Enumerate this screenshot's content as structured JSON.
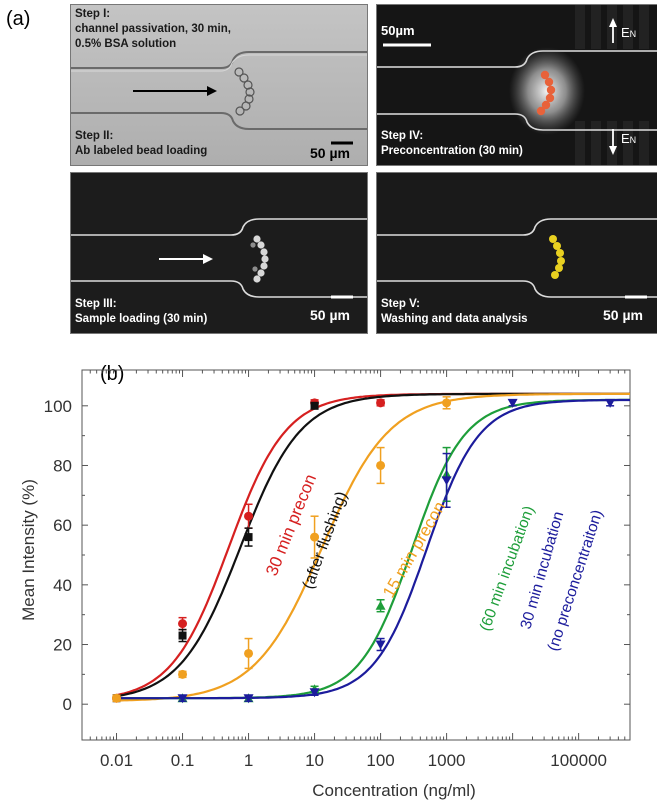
{
  "panel_a": {
    "label": "(a)",
    "steps": [
      {
        "line1": "Step I:",
        "line2": "channel passivation, 30 min,",
        "line3": "0.5% BSA solution"
      },
      {
        "line1": "Step II:",
        "line2": "Ab labeled bead loading"
      },
      {
        "line1": "Step III:",
        "line2": "Sample loading (30 min)"
      },
      {
        "line1": "Step IV:",
        "line2": "Preconcentration (30 min)"
      },
      {
        "line1": "Step V:",
        "line2": "Washing and data analysis"
      }
    ],
    "scale_bar": "50 µm",
    "scale_bar_top": "50µm",
    "field_label": "E",
    "field_sub": "N",
    "colors": {
      "bright_field": "#b8b8b8",
      "dark_field": "#1a1a1a",
      "orange_beads": "#e8623a",
      "yellow_beads": "#e8d020",
      "white_beads": "#d8d8d8"
    }
  },
  "chart_data": {
    "type": "line",
    "label": "(b)",
    "xlabel": "Concentration (ng/ml)",
    "ylabel": "Mean Intensity (%)",
    "xscale": "log",
    "xlim": [
      0.003,
      600000
    ],
    "ylim": [
      -12,
      112
    ],
    "xticks": [
      0.01,
      0.1,
      1,
      10,
      100,
      1000,
      100000
    ],
    "xtick_labels": [
      "0.01",
      "0.1",
      "1",
      "10",
      "100",
      "1000",
      "100000"
    ],
    "yticks": [
      0,
      20,
      40,
      60,
      80,
      100
    ],
    "ytick_labels": [
      "0",
      "20",
      "40",
      "60",
      "80",
      "100"
    ],
    "grid": false,
    "series": [
      {
        "name": "30 min precon",
        "color": "#d62020",
        "marker": "circle",
        "x": [
          0.01,
          0.1,
          1,
          10,
          100
        ],
        "y": [
          2,
          27,
          63,
          101,
          101
        ],
        "err": [
          1,
          2,
          4,
          1,
          1
        ],
        "fit_ec50": 0.5,
        "fit_hill": 1.0,
        "fit_min": 1,
        "fit_max": 104
      },
      {
        "name": "(after flushing)",
        "color": "#111111",
        "marker": "square",
        "x": [
          0.01,
          0.1,
          1,
          10
        ],
        "y": [
          2,
          23,
          56,
          100
        ],
        "err": [
          1,
          2,
          3,
          1
        ],
        "fit_ec50": 0.75,
        "fit_hill": 0.95,
        "fit_min": 1,
        "fit_max": 104
      },
      {
        "name": "15 min precon",
        "color": "#f0a020",
        "marker": "circle",
        "x": [
          0.01,
          0.1,
          1,
          10,
          100,
          1000
        ],
        "y": [
          2,
          10,
          17,
          56,
          80,
          101
        ],
        "err": [
          1,
          1,
          5,
          7,
          6,
          2
        ],
        "fit_ec50": 13,
        "fit_hill": 0.85,
        "fit_min": 1,
        "fit_max": 104
      },
      {
        "name": "(60 min incubation)",
        "color": "#1e9e3a",
        "marker": "triangle-up",
        "x": [
          0.1,
          1,
          10,
          100,
          1000
        ],
        "y": [
          2,
          2,
          5,
          33,
          77
        ],
        "err": [
          1,
          1,
          1,
          2,
          9
        ],
        "fit_ec50": 300,
        "fit_hill": 1.1,
        "fit_min": 2,
        "fit_max": 102
      },
      {
        "name": "30 min incubation",
        "color": "#1c1c9c",
        "marker": "triangle-down",
        "x": [
          0.1,
          1,
          10,
          100,
          1000,
          10000,
          300000
        ],
        "y": [
          2,
          2,
          4,
          20,
          75,
          101,
          101
        ],
        "err": [
          1,
          1,
          1,
          2,
          9,
          1,
          1
        ],
        "fit_ec50": 500,
        "fit_hill": 1.1,
        "fit_min": 2,
        "fit_max": 102
      }
    ],
    "annotations": [
      {
        "text": "30 min precon",
        "color": "#d62020"
      },
      {
        "text": "(after flushing)",
        "color": "#111111"
      },
      {
        "text": "15 min precon",
        "color": "#f0a020"
      },
      {
        "text": "(60 min incubation)",
        "color": "#1e9e3a"
      },
      {
        "text": "30 min incubation",
        "color": "#1c1c9c"
      },
      {
        "text": "(no preconcentraiton)",
        "color": "#1c1c9c"
      }
    ]
  }
}
